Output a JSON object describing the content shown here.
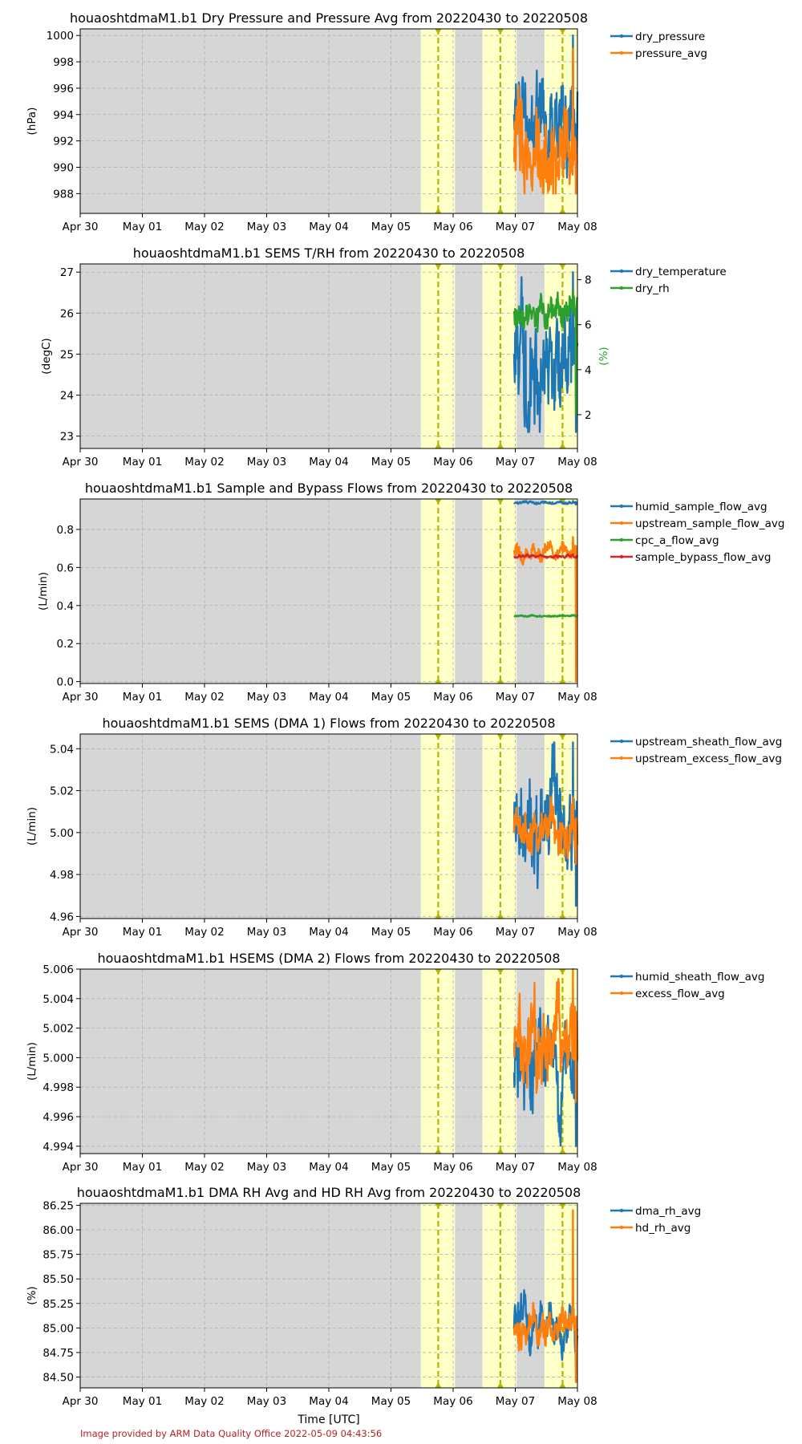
{
  "footer": {
    "credit": "Image provided by ARM Data Quality Office 2022-05-09 04:43:56"
  },
  "colors": {
    "plot_background": "#d6d6d6",
    "shaded_region": "#ffffc8",
    "marker_line": "#b5b500",
    "grid": "#b0b0b0",
    "blue": "#1f77b4",
    "orange": "#ff7f0e",
    "green": "#2ca02c",
    "red": "#d62728"
  },
  "chart_data": [
    {
      "type": "line",
      "title": "houaoshtdmaM1.b1 Dry Pressure and Pressure Avg from 20220430 to 20220508",
      "xlabel": "",
      "ylabel": "(hPa)",
      "xlim": [
        0,
        8
      ],
      "x_tick_labels": [
        "Apr 30",
        "May 01",
        "May 02",
        "May 03",
        "May 04",
        "May 05",
        "May 06",
        "May 07",
        "May 08"
      ],
      "ylim": [
        986.5,
        1000.5
      ],
      "y_ticks": [
        988,
        990,
        992,
        994,
        996,
        998,
        1000
      ],
      "y_tick_labels": [
        "988",
        "990",
        "992",
        "994",
        "996",
        "998",
        "1000"
      ],
      "grid": true,
      "legend": "outside-right",
      "shaded_spans_days": [
        [
          5.48,
          6.03
        ],
        [
          6.47,
          7.02
        ],
        [
          7.47,
          8.0
        ]
      ],
      "marker_lines_days": [
        5.76,
        6.76,
        7.76
      ],
      "series": [
        {
          "name": "dry_pressure",
          "color": "#1f77b4",
          "data_range": [
            6.98,
            8.0
          ],
          "y_range": [
            988,
            1000
          ],
          "base": 994,
          "amp": 2.5,
          "seed": 11
        },
        {
          "name": "pressure_avg",
          "color": "#ff7f0e",
          "data_range": [
            6.98,
            8.0
          ],
          "y_range": [
            988,
            999
          ],
          "base": 991.5,
          "amp": 2.5,
          "seed": 12
        }
      ]
    },
    {
      "type": "line",
      "title": "houaoshtdmaM1.b1 SEMS T/RH from 20220430 to 20220508",
      "xlabel": "",
      "ylabel": "(degC)",
      "y2label": "(%)",
      "xlim": [
        0,
        8
      ],
      "x_tick_labels": [
        "Apr 30",
        "May 01",
        "May 02",
        "May 03",
        "May 04",
        "May 05",
        "May 06",
        "May 07",
        "May 08"
      ],
      "ylim": [
        22.7,
        27.2
      ],
      "y_ticks": [
        23,
        24,
        25,
        26,
        27
      ],
      "y_tick_labels": [
        "23",
        "24",
        "25",
        "26",
        "27"
      ],
      "y2lim": [
        0.5,
        8.7
      ],
      "y2_ticks": [
        2,
        4,
        6,
        8
      ],
      "y2_tick_labels": [
        "2",
        "4",
        "6",
        "8"
      ],
      "grid": true,
      "legend": "outside-right",
      "shaded_spans_days": [
        [
          5.48,
          6.03
        ],
        [
          6.47,
          7.02
        ],
        [
          7.47,
          8.0
        ]
      ],
      "marker_lines_days": [
        5.76,
        6.76,
        7.76
      ],
      "series": [
        {
          "name": "dry_temperature",
          "color": "#1f77b4",
          "data_range": [
            6.98,
            8.0
          ],
          "y_range": [
            23.1,
            27.0
          ],
          "base": 25.0,
          "amp": 1.0,
          "seed": 21
        },
        {
          "name": "dry_rh",
          "color": "#2ca02c",
          "axis": "right",
          "data_range": [
            6.98,
            8.0
          ],
          "y_range": [
            2.0,
            7.5
          ],
          "base": 6.6,
          "amp": 0.5,
          "seed": 22
        }
      ]
    },
    {
      "type": "line",
      "title": "houaoshtdmaM1.b1 Sample and Bypass Flows from 20220430 to 20220508",
      "xlabel": "",
      "ylabel": "(L/min)",
      "xlim": [
        0,
        8
      ],
      "x_tick_labels": [
        "Apr 30",
        "May 01",
        "May 02",
        "May 03",
        "May 04",
        "May 05",
        "May 06",
        "May 07",
        "May 08"
      ],
      "ylim": [
        -0.01,
        0.96
      ],
      "y_ticks": [
        0.0,
        0.2,
        0.4,
        0.6,
        0.8
      ],
      "y_tick_labels": [
        "0.0",
        "0.2",
        "0.4",
        "0.6",
        "0.8"
      ],
      "grid": true,
      "legend": "outside-right",
      "shaded_spans_days": [
        [
          5.48,
          6.03
        ],
        [
          6.47,
          7.02
        ],
        [
          7.47,
          8.0
        ]
      ],
      "marker_lines_days": [
        5.76,
        6.76,
        7.76
      ],
      "series": [
        {
          "name": "humid_sample_flow_avg",
          "color": "#1f77b4",
          "data_range": [
            6.98,
            8.0
          ],
          "y_range": [
            0.93,
            0.95
          ],
          "base": 0.94,
          "amp": 0.005,
          "seed": 31
        },
        {
          "name": "upstream_sample_flow_avg",
          "color": "#ff7f0e",
          "data_range": [
            6.98,
            8.0
          ],
          "y_range": [
            0.0,
            0.76
          ],
          "base": 0.69,
          "amp": 0.03,
          "seed": 32
        },
        {
          "name": "cpc_a_flow_avg",
          "color": "#2ca02c",
          "data_range": [
            6.98,
            8.0
          ],
          "y_range": [
            0.34,
            0.35
          ],
          "base": 0.345,
          "amp": 0.003,
          "seed": 33
        },
        {
          "name": "sample_bypass_flow_avg",
          "color": "#d62728",
          "data_range": [
            6.98,
            8.0
          ],
          "y_range": [
            0.65,
            0.67
          ],
          "base": 0.66,
          "amp": 0.005,
          "seed": 34
        }
      ]
    },
    {
      "type": "line",
      "title": "houaoshtdmaM1.b1 SEMS (DMA 1) Flows from 20220430 to 20220508",
      "xlabel": "",
      "ylabel": "(L/min)",
      "xlim": [
        0,
        8
      ],
      "x_tick_labels": [
        "Apr 30",
        "May 01",
        "May 02",
        "May 03",
        "May 04",
        "May 05",
        "May 06",
        "May 07",
        "May 08"
      ],
      "ylim": [
        4.959,
        5.047
      ],
      "y_ticks": [
        4.96,
        4.98,
        5.0,
        5.02,
        5.04
      ],
      "y_tick_labels": [
        "4.96",
        "4.98",
        "5.00",
        "5.02",
        "5.04"
      ],
      "grid": true,
      "legend": "outside-right",
      "shaded_spans_days": [
        [
          5.48,
          6.03
        ],
        [
          6.47,
          7.02
        ],
        [
          7.47,
          8.0
        ]
      ],
      "marker_lines_days": [
        5.76,
        6.76,
        7.76
      ],
      "series": [
        {
          "name": "upstream_sheath_flow_avg",
          "color": "#1f77b4",
          "data_range": [
            6.98,
            8.0
          ],
          "y_range": [
            4.965,
            5.043
          ],
          "base": 5.0,
          "amp": 0.018,
          "seed": 41
        },
        {
          "name": "upstream_excess_flow_avg",
          "color": "#ff7f0e",
          "data_range": [
            6.98,
            8.0
          ],
          "y_range": [
            4.985,
            5.017
          ],
          "base": 5.0,
          "amp": 0.008,
          "seed": 42
        }
      ]
    },
    {
      "type": "line",
      "title": "houaoshtdmaM1.b1 HSEMS (DMA 2) Flows from 20220430 to 20220508",
      "xlabel": "",
      "ylabel": "(L/min)",
      "xlim": [
        0,
        8
      ],
      "x_tick_labels": [
        "Apr 30",
        "May 01",
        "May 02",
        "May 03",
        "May 04",
        "May 05",
        "May 06",
        "May 07",
        "May 08"
      ],
      "ylim": [
        4.9935,
        5.006
      ],
      "y_ticks": [
        4.994,
        4.996,
        4.998,
        5.0,
        5.002,
        5.004,
        5.006
      ],
      "y_tick_labels": [
        "4.994",
        "4.996",
        "4.998",
        "5.000",
        "5.002",
        "5.004",
        "5.006"
      ],
      "grid": true,
      "legend": "outside-right",
      "shaded_spans_days": [
        [
          5.48,
          6.03
        ],
        [
          6.47,
          7.02
        ],
        [
          7.47,
          8.0
        ]
      ],
      "marker_lines_days": [
        5.76,
        6.76,
        7.76
      ],
      "series": [
        {
          "name": "humid_sheath_flow_avg",
          "color": "#1f77b4",
          "data_range": [
            6.98,
            8.0
          ],
          "y_range": [
            4.994,
            5.004
          ],
          "base": 4.999,
          "amp": 0.002,
          "seed": 51
        },
        {
          "name": "excess_flow_avg",
          "color": "#ff7f0e",
          "data_range": [
            6.98,
            8.0
          ],
          "y_range": [
            4.997,
            5.006
          ],
          "base": 5.001,
          "amp": 0.002,
          "seed": 52
        }
      ]
    },
    {
      "type": "line",
      "title": "houaoshtdmaM1.b1 DMA RH Avg and HD RH Avg from 20220430 to 20220508",
      "xlabel": "Time [UTC]",
      "ylabel": "(%)",
      "xlim": [
        0,
        8
      ],
      "x_tick_labels": [
        "Apr 30",
        "May 01",
        "May 02",
        "May 03",
        "May 04",
        "May 05",
        "May 06",
        "May 07",
        "May 08"
      ],
      "ylim": [
        84.39,
        86.27
      ],
      "y_ticks": [
        84.5,
        84.75,
        85.0,
        85.25,
        85.5,
        85.75,
        86.0,
        86.25
      ],
      "y_tick_labels": [
        "84.50",
        "84.75",
        "85.00",
        "85.25",
        "85.50",
        "85.75",
        "86.00",
        "86.25"
      ],
      "grid": true,
      "legend": "outside-right",
      "shaded_spans_days": [
        [
          5.48,
          6.03
        ],
        [
          6.47,
          7.02
        ],
        [
          7.47,
          8.0
        ]
      ],
      "marker_lines_days": [
        5.76,
        6.76,
        7.76
      ],
      "series": [
        {
          "name": "dma_rh_avg",
          "color": "#1f77b4",
          "data_range": [
            6.98,
            8.0
          ],
          "y_range": [
            84.45,
            85.45
          ],
          "base": 85.0,
          "amp": 0.15,
          "seed": 61
        },
        {
          "name": "hd_rh_avg",
          "color": "#ff7f0e",
          "data_range": [
            6.98,
            8.0
          ],
          "y_range": [
            84.45,
            86.2
          ],
          "base": 85.0,
          "amp": 0.12,
          "seed": 62
        }
      ]
    }
  ]
}
